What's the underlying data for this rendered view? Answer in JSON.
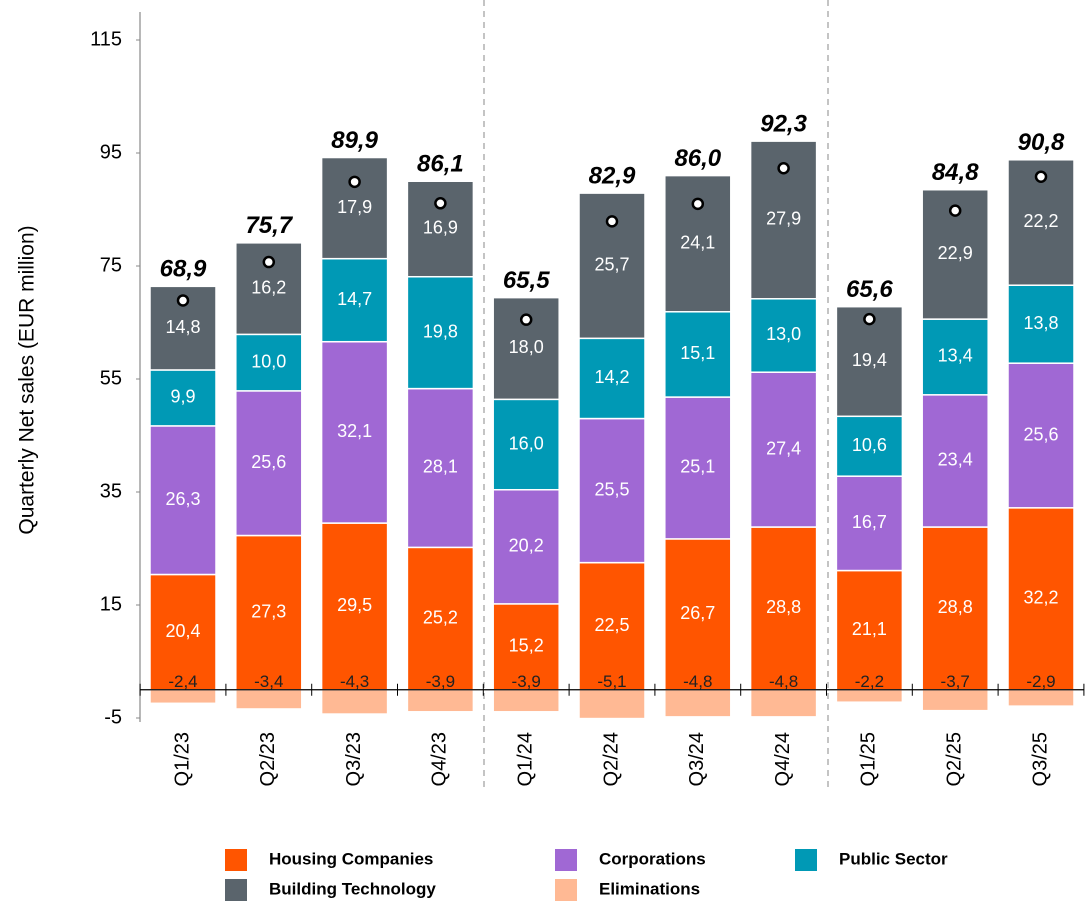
{
  "chart_data": {
    "type": "stacked-bar",
    "y_label": "Quarterly Net sales (EUR million)",
    "categories": [
      "Q1/23",
      "Q2/23",
      "Q3/23",
      "Q4/23",
      "Q1/24",
      "Q2/24",
      "Q3/24",
      "Q4/24",
      "Q1/25",
      "Q2/25",
      "Q3/25"
    ],
    "series": [
      {
        "name": "Housing Companies",
        "color": "#ff5500",
        "values": [
          20.4,
          27.3,
          29.5,
          25.2,
          15.2,
          22.5,
          26.7,
          28.8,
          21.1,
          28.8,
          32.2
        ],
        "value_labels": [
          "20,4",
          "27,3",
          "29,5",
          "25,2",
          "15,2",
          "22,5",
          "26,7",
          "28,8",
          "21,1",
          "28,8",
          "32,2"
        ]
      },
      {
        "name": "Corporations",
        "color": "#a068d4",
        "values": [
          26.3,
          25.6,
          32.1,
          28.1,
          20.2,
          25.5,
          25.1,
          27.4,
          16.7,
          23.4,
          25.6
        ],
        "value_labels": [
          "26,3",
          "25,6",
          "32,1",
          "28,1",
          "20,2",
          "25,5",
          "25,1",
          "27,4",
          "16,7",
          "23,4",
          "25,6"
        ]
      },
      {
        "name": "Public Sector",
        "color": "#0099b5",
        "values": [
          9.9,
          10.0,
          14.7,
          19.8,
          16.0,
          14.2,
          15.1,
          13.0,
          10.6,
          13.4,
          13.8
        ],
        "value_labels": [
          "9,9",
          "10,0",
          "14,7",
          "19,8",
          "16,0",
          "14,2",
          "15,1",
          "13,0",
          "10,6",
          "13,4",
          "13,8"
        ]
      },
      {
        "name": "Building Technology",
        "color": "#5a646c",
        "values": [
          14.8,
          16.2,
          17.9,
          16.9,
          18.0,
          25.7,
          24.1,
          27.9,
          19.4,
          22.9,
          22.2
        ],
        "value_labels": [
          "14,8",
          "16,2",
          "17,9",
          "16,9",
          "18,0",
          "25,7",
          "24,1",
          "27,9",
          "19,4",
          "22,9",
          "22,2"
        ]
      },
      {
        "name": "Eliminations",
        "color": "#ffb994",
        "values": [
          -2.4,
          -3.4,
          -4.3,
          -3.9,
          -3.9,
          -5.1,
          -4.8,
          -4.8,
          -2.2,
          -3.7,
          -2.9
        ],
        "value_labels": [
          "-2,4",
          "-3,4",
          "-4,3",
          "-3,9",
          "-3,9",
          "-5,1",
          "-4,8",
          "-4,8",
          "-2,2",
          "-3,7",
          "-2,9"
        ]
      }
    ],
    "totals": {
      "values": [
        68.9,
        75.7,
        89.9,
        86.1,
        65.5,
        82.9,
        86.0,
        92.3,
        65.6,
        84.8,
        90.8
      ],
      "value_labels": [
        "68,9",
        "75,7",
        "89,9",
        "86,1",
        "65,5",
        "82,9",
        "86,0",
        "92,3",
        "65,6",
        "84,8",
        "90,8"
      ]
    },
    "ylim": [
      -5,
      115
    ],
    "yticks": [
      -5,
      15,
      35,
      55,
      75,
      95,
      115
    ]
  }
}
